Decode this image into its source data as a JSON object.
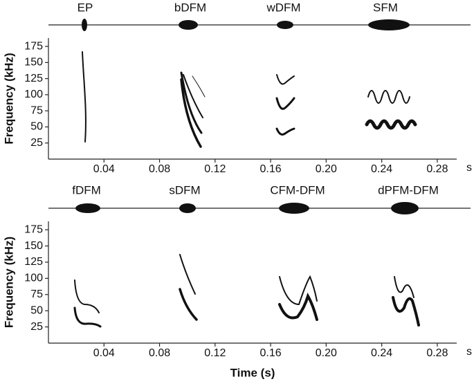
{
  "chart_data": [
    {
      "type": "spectrogram",
      "annotations": [
        "EP",
        "bDFM",
        "wDFM",
        "SFM"
      ],
      "ylabel": "Frequency (kHz)",
      "x_unit": "s",
      "xlim": [
        0,
        0.294
      ],
      "xticks": [
        0.04,
        0.08,
        0.12,
        0.16,
        {
          "value": 0.2,
          "label": "0.20"
        },
        0.24,
        0.28
      ],
      "ylim": [
        0,
        188
      ],
      "yticks": [
        25,
        50,
        75,
        100,
        125,
        150,
        175
      ]
    },
    {
      "type": "spectrogram",
      "annotations": [
        "fDFM",
        "sDFM",
        "CFM-DFM",
        "dPFM-DFM"
      ],
      "ylabel": "Frequency (kHz)",
      "x_unit": "s",
      "xlabel": "Time (s)",
      "xlim": [
        0,
        0.294
      ],
      "xticks": [
        0.04,
        0.08,
        0.12,
        0.16,
        {
          "value": 0.2,
          "label": "0.20"
        },
        0.24,
        0.28
      ],
      "ylim": [
        0,
        188
      ],
      "yticks": [
        25,
        50,
        75,
        100,
        125,
        150,
        175
      ]
    }
  ]
}
